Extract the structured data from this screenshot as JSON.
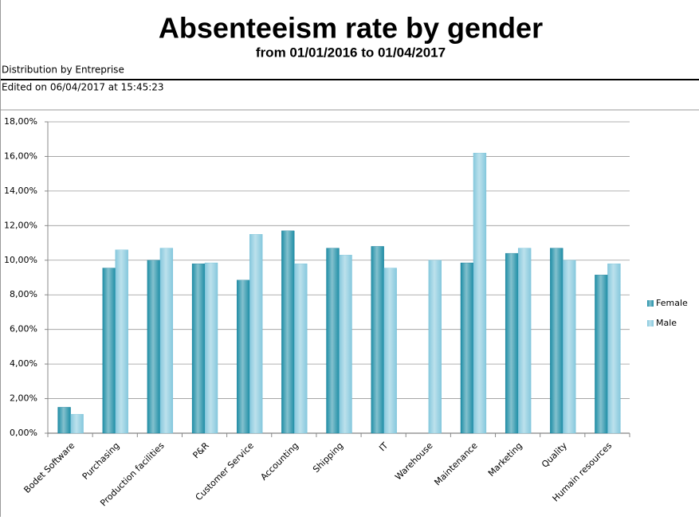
{
  "header": {
    "title": "Absenteeism rate by gender",
    "subtitle": "from 01/01/2016 to 01/04/2017",
    "distribution": "Distribution by Entreprise",
    "edited": "Edited on 06/04/2017 at 15:45:23"
  },
  "chart_data": {
    "type": "bar",
    "categories": [
      "Bodet Software",
      "Purchasing",
      "Production facilities",
      "P&R",
      "Customer Service",
      "Accounting",
      "Shipping",
      "IT",
      "Warehouse",
      "Maintenance",
      "Marketing",
      "Quality",
      "Humain resources"
    ],
    "series": [
      {
        "name": "Female",
        "color": "#1f8ea6",
        "values": [
          1.5,
          9.55,
          10.0,
          9.8,
          8.85,
          11.7,
          10.7,
          10.8,
          null,
          9.85,
          10.4,
          10.7,
          9.15
        ]
      },
      {
        "name": "Male",
        "color": "#86c8dd",
        "values": [
          1.1,
          10.6,
          10.7,
          9.85,
          11.5,
          9.8,
          10.3,
          9.55,
          10.0,
          16.2,
          10.7,
          10.0,
          9.8
        ]
      }
    ],
    "ylim": [
      0,
      18
    ],
    "yticks": [
      {
        "value": 0,
        "label": "0,00%"
      },
      {
        "value": 2,
        "label": "2,00%"
      },
      {
        "value": 4,
        "label": "4,00%"
      },
      {
        "value": 6,
        "label": "6,00%"
      },
      {
        "value": 8,
        "label": "8,00%"
      },
      {
        "value": 10,
        "label": "10,00%"
      },
      {
        "value": 12,
        "label": "12,00%"
      },
      {
        "value": 14,
        "label": "14,00%"
      },
      {
        "value": 16,
        "label": "16,00%"
      },
      {
        "value": 18,
        "label": "18,00%"
      }
    ],
    "grid": true,
    "legend": "right"
  }
}
